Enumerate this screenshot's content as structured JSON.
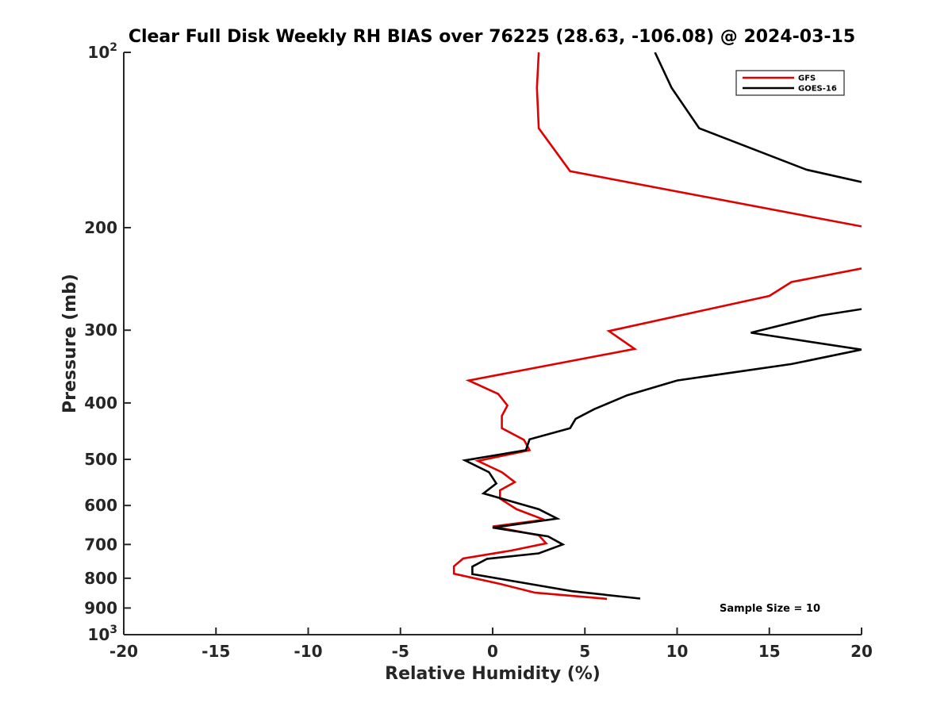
{
  "chart_data": {
    "type": "line",
    "title": "Clear Full Disk Weekly RH BIAS over 76225 (28.63, -106.08) @ 2024-03-15",
    "xlabel": "Relative Humidity (%)",
    "ylabel": "Pressure (mb)",
    "xlim": [
      -20,
      20
    ],
    "ylim": [
      100,
      1000
    ],
    "y_scale": "log",
    "y_reversed": true,
    "x_ticks": [
      -20,
      -15,
      -10,
      -5,
      0,
      5,
      10,
      15,
      20
    ],
    "x_tick_labels": [
      "-20",
      "-15",
      "-10",
      "-5",
      "0",
      "5",
      "10",
      "15",
      "20"
    ],
    "y_ticks": [
      100,
      200,
      300,
      400,
      500,
      600,
      700,
      800,
      900,
      1000
    ],
    "y_tick_labels": [
      {
        "base": "10",
        "exp": "2"
      },
      {
        "base": "200",
        "exp": ""
      },
      {
        "base": "300",
        "exp": ""
      },
      {
        "base": "400",
        "exp": ""
      },
      {
        "base": "500",
        "exp": ""
      },
      {
        "base": "600",
        "exp": ""
      },
      {
        "base": "700",
        "exp": ""
      },
      {
        "base": "800",
        "exp": ""
      },
      {
        "base": "900",
        "exp": ""
      },
      {
        "base": "10",
        "exp": "3"
      }
    ],
    "grid": false,
    "legend_position": "top-right",
    "annotation": "Sample Size = 10",
    "series": [
      {
        "name": "GFS",
        "color": "#e00000",
        "points": [
          [
            2.5,
            100
          ],
          [
            2.4,
            115
          ],
          [
            2.5,
            135
          ],
          [
            4.2,
            160
          ],
          [
            20,
            199
          ],
          [
            null,
            null
          ],
          [
            20,
            235
          ],
          [
            16.2,
            248
          ],
          [
            15,
            262
          ],
          [
            6.3,
            301
          ],
          [
            7.7,
            323
          ],
          [
            -1.3,
            366
          ],
          [
            0.3,
            386
          ],
          [
            0.8,
            404
          ],
          [
            0.5,
            421
          ],
          [
            0.5,
            442
          ],
          [
            1.7,
            463
          ],
          [
            2.0,
            482
          ],
          [
            -0.8,
            503
          ],
          [
            0.5,
            526
          ],
          [
            1.2,
            547
          ],
          [
            0.4,
            565
          ],
          [
            0.4,
            584
          ],
          [
            1.3,
            609
          ],
          [
            2.8,
            635
          ],
          [
            0.0,
            652
          ],
          [
            2.5,
            675
          ],
          [
            2.9,
            697
          ],
          [
            1.0,
            717
          ],
          [
            -1.6,
            740
          ],
          [
            -2.1,
            763
          ],
          [
            -2.1,
            786
          ],
          [
            0.4,
            818
          ],
          [
            2.3,
            847
          ],
          [
            6.2,
            868
          ]
        ]
      },
      {
        "name": "GOES-16",
        "color": "#000000",
        "points": [
          [
            8.8,
            100
          ],
          [
            9.7,
            115
          ],
          [
            11.2,
            135
          ],
          [
            17.0,
            159
          ],
          [
            20,
            167
          ],
          [
            null,
            null
          ],
          [
            20,
            276
          ],
          [
            17.8,
            283
          ],
          [
            14.0,
            303
          ],
          [
            20,
            324
          ],
          [
            16.2,
            343
          ],
          [
            10.0,
            366
          ],
          [
            7.3,
            388
          ],
          [
            5.5,
            410
          ],
          [
            4.5,
            426
          ],
          [
            4.2,
            442
          ],
          [
            2.0,
            462
          ],
          [
            1.8,
            482
          ],
          [
            -1.5,
            502
          ],
          [
            -0.2,
            526
          ],
          [
            0.2,
            550
          ],
          [
            -0.5,
            572
          ],
          [
            2.5,
            609
          ],
          [
            3.5,
            632
          ],
          [
            0.0,
            655
          ],
          [
            3.0,
            678
          ],
          [
            3.8,
            700
          ],
          [
            2.5,
            725
          ],
          [
            -0.3,
            741
          ],
          [
            -1.1,
            764
          ],
          [
            -1.1,
            787
          ],
          [
            2.0,
            818
          ],
          [
            4.3,
            842
          ],
          [
            8.0,
            867
          ]
        ]
      }
    ]
  }
}
